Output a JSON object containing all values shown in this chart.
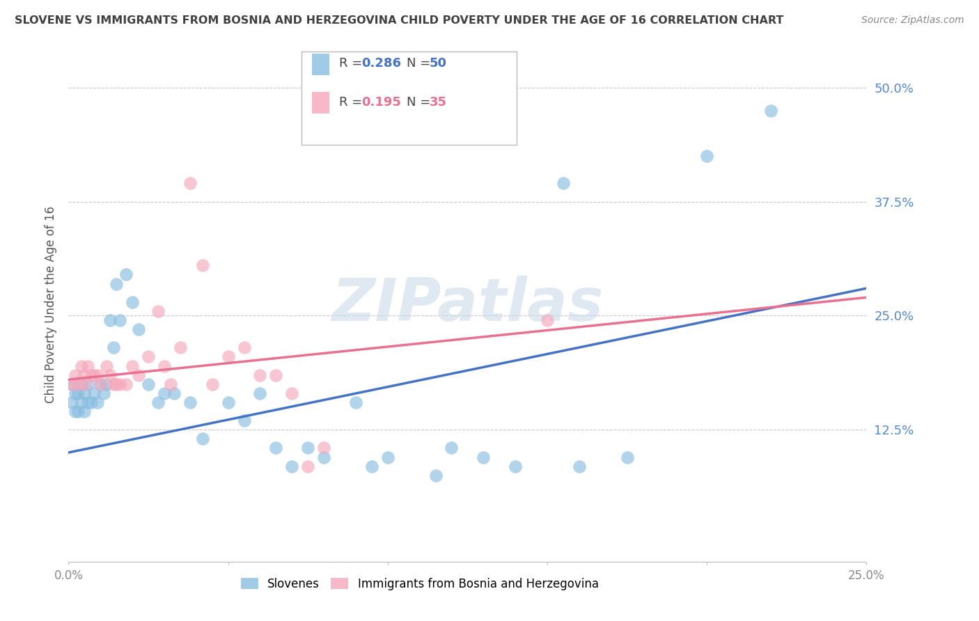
{
  "title": "SLOVENE VS IMMIGRANTS FROM BOSNIA AND HERZEGOVINA CHILD POVERTY UNDER THE AGE OF 16 CORRELATION CHART",
  "source": "Source: ZipAtlas.com",
  "ylabel": "Child Poverty Under the Age of 16",
  "watermark": "ZIPatlas",
  "xlim": [
    0.0,
    0.25
  ],
  "ylim": [
    -0.02,
    0.545
  ],
  "yticks": [
    0.125,
    0.25,
    0.375,
    0.5
  ],
  "ytick_labels": [
    "12.5%",
    "25.0%",
    "37.5%",
    "50.0%"
  ],
  "xticks": [
    0.0,
    0.05,
    0.1,
    0.15,
    0.2,
    0.25
  ],
  "xtick_labels": [
    "0.0%",
    "",
    "",
    "",
    "",
    "25.0%"
  ],
  "blue_R": 0.286,
  "blue_N": 50,
  "pink_R": 0.195,
  "pink_N": 35,
  "blue_color": "#89bde0",
  "pink_color": "#f5a8bc",
  "blue_line_color": "#4472c4",
  "pink_line_color": "#e87090",
  "blue_label": "Slovenes",
  "pink_label": "Immigrants from Bosnia and Herzegovina",
  "title_color": "#404040",
  "axis_label_color": "#555555",
  "tick_color": "#5588cc",
  "grid_color": "#c8c8c8",
  "background_color": "#ffffff",
  "blue_x": [
    0.001,
    0.001,
    0.002,
    0.002,
    0.003,
    0.003,
    0.004,
    0.004,
    0.005,
    0.005,
    0.006,
    0.006,
    0.007,
    0.008,
    0.009,
    0.01,
    0.011,
    0.012,
    0.013,
    0.014,
    0.015,
    0.016,
    0.018,
    0.02,
    0.022,
    0.025,
    0.028,
    0.03,
    0.033,
    0.038,
    0.042,
    0.05,
    0.055,
    0.06,
    0.065,
    0.07,
    0.075,
    0.08,
    0.09,
    0.095,
    0.1,
    0.115,
    0.12,
    0.13,
    0.14,
    0.155,
    0.16,
    0.175,
    0.2,
    0.22
  ],
  "blue_y": [
    0.175,
    0.155,
    0.165,
    0.145,
    0.165,
    0.145,
    0.175,
    0.155,
    0.165,
    0.145,
    0.175,
    0.155,
    0.155,
    0.165,
    0.155,
    0.175,
    0.165,
    0.175,
    0.245,
    0.215,
    0.285,
    0.245,
    0.295,
    0.265,
    0.235,
    0.175,
    0.155,
    0.165,
    0.165,
    0.155,
    0.115,
    0.155,
    0.135,
    0.165,
    0.105,
    0.085,
    0.105,
    0.095,
    0.155,
    0.085,
    0.095,
    0.075,
    0.105,
    0.095,
    0.085,
    0.395,
    0.085,
    0.095,
    0.425,
    0.475
  ],
  "pink_x": [
    0.001,
    0.002,
    0.003,
    0.004,
    0.005,
    0.005,
    0.006,
    0.007,
    0.008,
    0.009,
    0.01,
    0.012,
    0.013,
    0.014,
    0.015,
    0.016,
    0.018,
    0.02,
    0.022,
    0.025,
    0.028,
    0.03,
    0.032,
    0.035,
    0.038,
    0.042,
    0.045,
    0.05,
    0.055,
    0.06,
    0.065,
    0.07,
    0.075,
    0.08,
    0.15
  ],
  "pink_y": [
    0.175,
    0.185,
    0.175,
    0.195,
    0.185,
    0.175,
    0.195,
    0.185,
    0.185,
    0.185,
    0.175,
    0.195,
    0.185,
    0.175,
    0.175,
    0.175,
    0.175,
    0.195,
    0.185,
    0.205,
    0.255,
    0.195,
    0.175,
    0.215,
    0.395,
    0.305,
    0.175,
    0.205,
    0.215,
    0.185,
    0.185,
    0.165,
    0.085,
    0.105,
    0.245
  ]
}
